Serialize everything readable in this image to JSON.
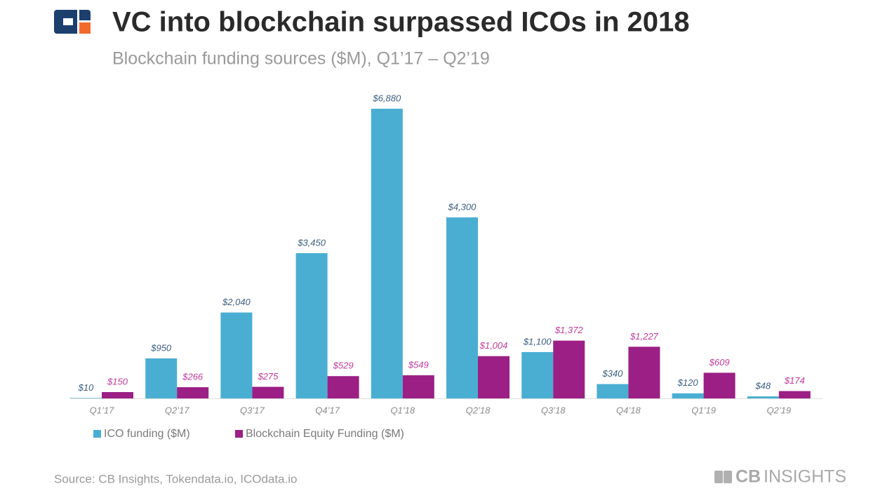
{
  "chart_data": {
    "type": "bar",
    "title": "VC into blockchain surpassed ICOs in 2018",
    "subtitle": "Blockchain funding sources ($M), Q1’17 – Q2’19",
    "categories": [
      "Q1’17",
      "Q2’17",
      "Q3’17",
      "Q4’17",
      "Q1’18",
      "Q2’18",
      "Q3’18",
      "Q4’18",
      "Q1’19",
      "Q2’19"
    ],
    "series": [
      {
        "name": "ICO funding ($M)",
        "color": "#4aaed3",
        "label_color": "#3d5f82",
        "values": [
          10,
          950,
          2040,
          3450,
          6880,
          4300,
          1100,
          340,
          120,
          48
        ],
        "value_labels": [
          "$10",
          "$950",
          "$2,040",
          "$3,450",
          "$6,880",
          "$4,300",
          "$1,100",
          "$340",
          "$120",
          "$48"
        ]
      },
      {
        "name": "Blockchain Equity Funding ($M)",
        "color": "#9b1f84",
        "label_color": "#c23b9c",
        "values": [
          150,
          266,
          275,
          529,
          549,
          1004,
          1372,
          1227,
          609,
          174
        ],
        "value_labels": [
          "$150",
          "$266",
          "$275",
          "$529",
          "$549",
          "$1,004",
          "$1,372",
          "$1,227",
          "$609",
          "$174"
        ]
      }
    ],
    "source": "Source: CB Insights, Tokendata.io, ICOdata.io",
    "brand_bold": "CB",
    "brand": "INSIGHTS"
  }
}
